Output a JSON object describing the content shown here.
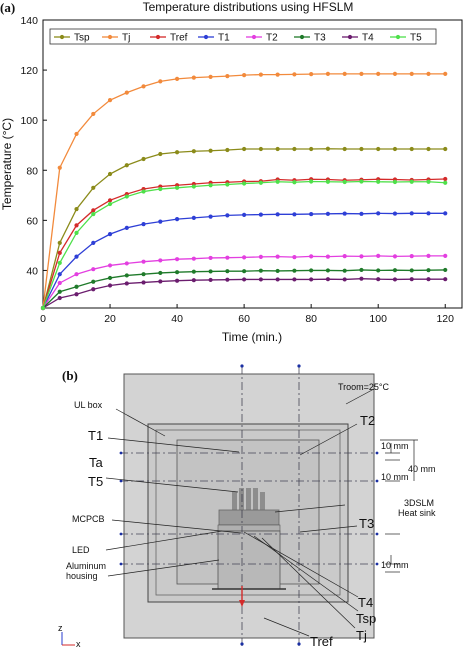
{
  "panel_a_label": "(a)",
  "panel_b_label": "(b)",
  "chart_data": {
    "type": "line",
    "title": "Temperature distributions using HFSLM",
    "xlabel": "Time (min.)",
    "ylabel": "Temperature (°C)",
    "xlim": [
      0,
      125
    ],
    "ylim": [
      25,
      140
    ],
    "xticks": [
      0,
      20,
      40,
      60,
      80,
      100,
      120
    ],
    "yticks": [
      40,
      60,
      80,
      100,
      120,
      140
    ],
    "legend_position": "top",
    "x": [
      0,
      5,
      10,
      15,
      20,
      25,
      30,
      35,
      40,
      45,
      50,
      55,
      60,
      65,
      70,
      75,
      80,
      85,
      90,
      95,
      100,
      105,
      110,
      115,
      120
    ],
    "series": [
      {
        "name": "Tsp",
        "color": "#8b8b1a",
        "values": [
          25,
          51,
          64.5,
          73,
          78.5,
          82,
          84.5,
          86.5,
          87.2,
          87.6,
          87.8,
          88.1,
          88.5,
          88.5,
          88.5,
          88.5,
          88.5,
          88.6,
          88.5,
          88.5,
          88.5,
          88.5,
          88.5,
          88.5,
          88.5
        ]
      },
      {
        "name": "Tj",
        "color": "#f28a3c",
        "values": [
          25,
          81,
          94.5,
          102.5,
          108,
          111,
          113.5,
          115.5,
          116.5,
          117,
          117.3,
          117.6,
          118,
          118.2,
          118.2,
          118.3,
          118.4,
          118.5,
          118.5,
          118.5,
          118.5,
          118.5,
          118.5,
          118.5,
          118.5
        ]
      },
      {
        "name": "Tref",
        "color": "#d42a2a",
        "values": [
          25,
          47,
          58,
          64,
          68,
          70.5,
          72.5,
          73.5,
          74,
          74.5,
          75,
          75.2,
          75.5,
          75.6,
          76.3,
          76,
          76.4,
          76.3,
          76,
          76.2,
          76.4,
          76.3,
          76.1,
          76.3,
          76.5
        ]
      },
      {
        "name": "T1",
        "color": "#2e3fd6",
        "values": [
          25,
          38.5,
          45.5,
          51,
          54.5,
          57,
          58.5,
          59.5,
          60.5,
          61,
          61.5,
          62,
          62.2,
          62.3,
          62.4,
          62.4,
          62.5,
          62.6,
          62.7,
          62.6,
          62.8,
          62.7,
          62.8,
          62.8,
          62.8
        ]
      },
      {
        "name": "T2",
        "color": "#e33fe0",
        "values": [
          25,
          35,
          38.5,
          40.5,
          42,
          42.8,
          43.5,
          44,
          44.5,
          44.7,
          45,
          45.1,
          45.2,
          45.4,
          45.5,
          45.3,
          45.6,
          45.5,
          45.7,
          45.6,
          45.8,
          45.6,
          45.7,
          45.8,
          45.8
        ]
      },
      {
        "name": "T3",
        "color": "#1f7a2a",
        "values": [
          25,
          31.5,
          33.5,
          35.5,
          37,
          38,
          38.5,
          39,
          39.3,
          39.5,
          39.6,
          39.7,
          39.7,
          39.9,
          39.8,
          39.9,
          40,
          40,
          39.9,
          40.2,
          40,
          40.1,
          40,
          40.1,
          40.2
        ]
      },
      {
        "name": "T4",
        "color": "#6b1d6e",
        "values": [
          25,
          29,
          30.5,
          32.5,
          34,
          34.8,
          35.2,
          35.6,
          35.9,
          36.1,
          36.2,
          36.3,
          36.4,
          36.4,
          36.4,
          36.4,
          36.4,
          36.5,
          36.4,
          36.7,
          36.5,
          36.4,
          36.5,
          36.5,
          36.5
        ]
      },
      {
        "name": "T5",
        "color": "#4ee04a",
        "values": [
          25,
          43,
          55,
          62.5,
          66.5,
          69.5,
          71.5,
          72.5,
          73,
          73.5,
          74,
          74.3,
          74.7,
          75,
          75.4,
          75.2,
          75.5,
          75.4,
          75.3,
          75.5,
          75.4,
          75.3,
          75.4,
          75.4,
          75
        ]
      }
    ]
  },
  "diagram": {
    "troom": "Troom=25°C",
    "ul_box": "UL box",
    "t1": "T1",
    "t2": "T2",
    "ta": "Ta",
    "t5": "T5",
    "t3": "T3",
    "t4": "T4",
    "tsp": "Tsp",
    "tj": "Tj",
    "tref": "Tref",
    "mcpcb": "MCPCB",
    "led": "LED",
    "aluminum_line1": "Aluminum",
    "aluminum_line2": "housing",
    "heatsink_line1": "3DSLM",
    "heatsink_line2": "Heat sink",
    "dim_10mm_a": "10 mm",
    "dim_10mm_b": "10 mm",
    "dim_10mm_c": "10 mm",
    "dim_40mm": "40 mm",
    "axis_z": "z",
    "axis_x": "x"
  }
}
